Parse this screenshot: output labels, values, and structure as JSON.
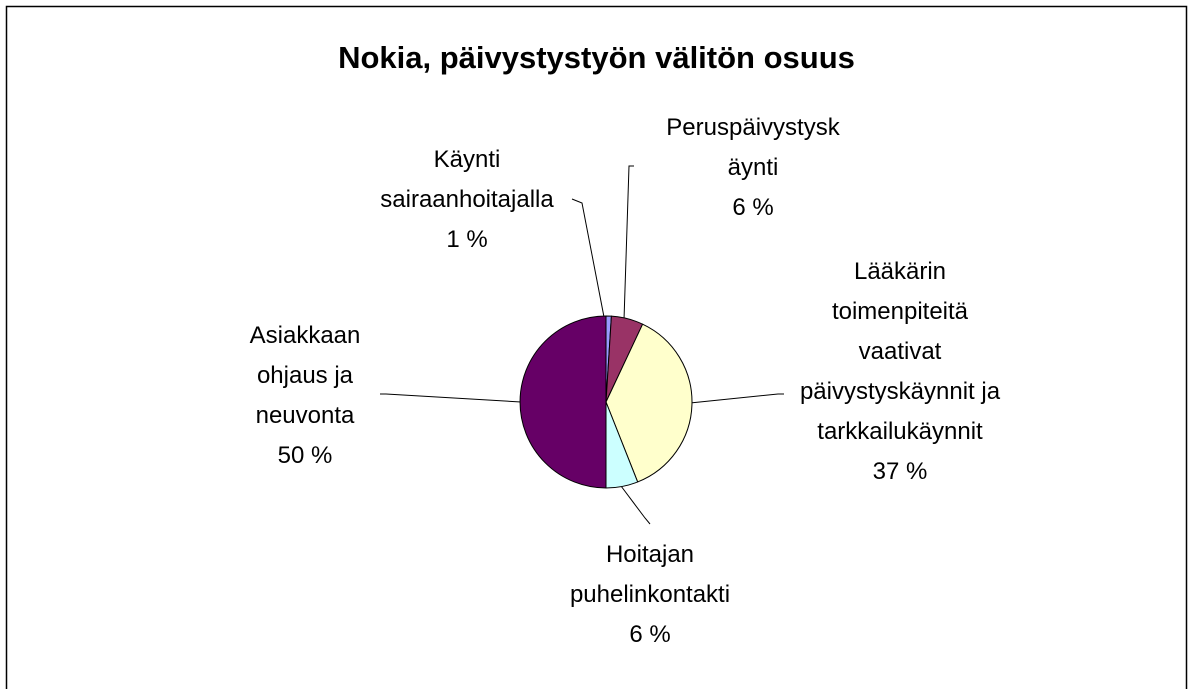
{
  "chart_data": {
    "type": "pie",
    "title": "Nokia, päivystystyön välitön osuus",
    "categories": [
      "Käynti sairaanhoitajalla",
      "Peruspäivystyskäynti",
      "Lääkärin toimenpiteitä vaativat päivystyskäynnit ja tarkkailukäynnit",
      "Hoitajan puhelinkontakti",
      "Asiakkaan ohjaus ja neuvonta"
    ],
    "values": [
      1,
      6,
      37,
      6,
      50
    ],
    "value_labels": [
      "1 %",
      "6 %",
      "37 %",
      "6 %",
      "50 %"
    ],
    "colors": [
      "#9999ff",
      "#993366",
      "#ffffcc",
      "#ccffff",
      "#660066"
    ]
  }
}
